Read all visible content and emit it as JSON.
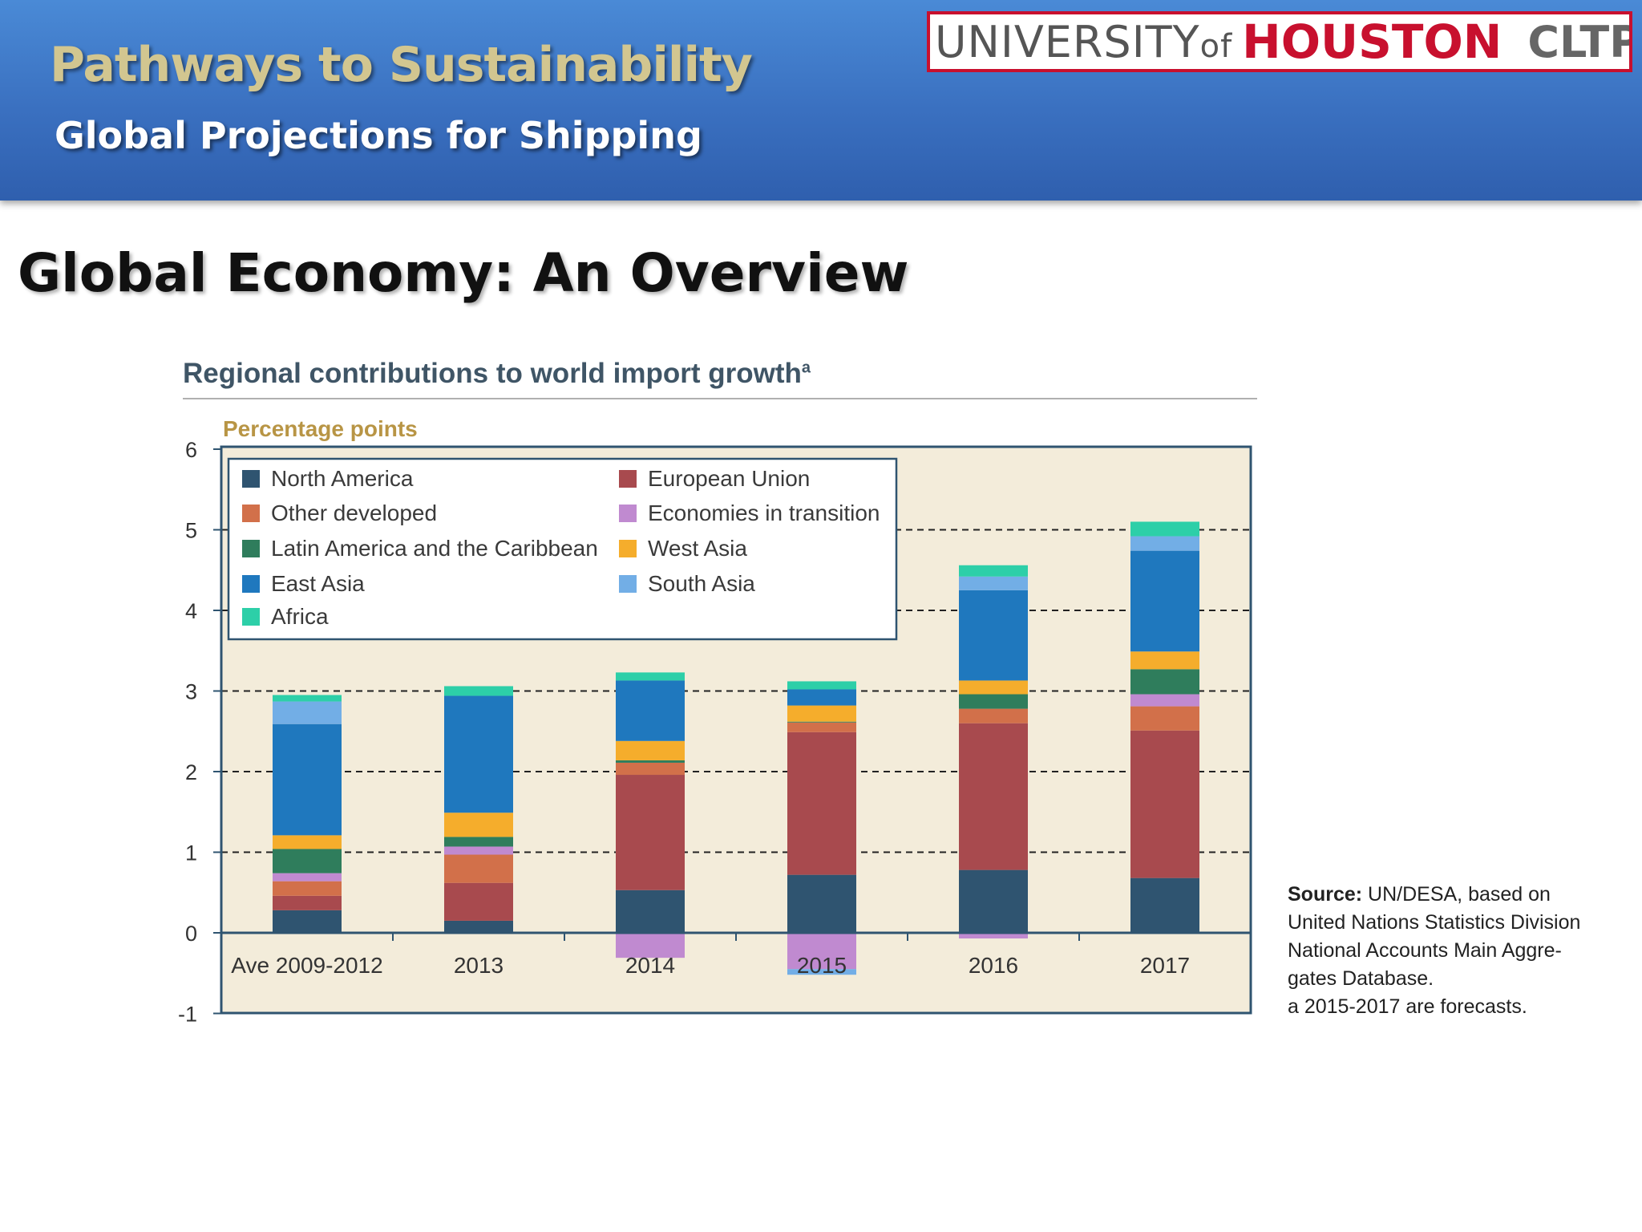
{
  "header": {
    "title": "Pathways to Sustainability",
    "subtitle": "Global Projections for Shipping",
    "logo": {
      "university": "UNIVERSITY",
      "of": "of",
      "houston": "HOUSTON",
      "unit": "CLTP"
    }
  },
  "slide": {
    "heading": "Global Economy: An Overview"
  },
  "colors": {
    "banner": "#3a70c0",
    "plot_bg": "#f3ecda",
    "north_america": "#2f5470",
    "european_union": "#a84a4e",
    "other_developed": "#d2704a",
    "economies_in_transition": "#c08ad0",
    "latin_america": "#2f7d5c",
    "west_asia": "#f5ad2c",
    "east_asia": "#1f78be",
    "south_asia": "#72aee6",
    "africa": "#2dcfa8"
  },
  "chart_data": {
    "type": "bar",
    "stacked": true,
    "title": "Regional contributions to world import growth",
    "title_superscript": "a",
    "ylabel": "Percentage points",
    "ylim": [
      -1,
      6
    ],
    "yticks": [
      "6",
      "5",
      "4",
      "3",
      "2",
      "1",
      "0",
      "-1"
    ],
    "grid": "dashed horizontal",
    "legend_position": "top-left",
    "categories": [
      "Ave 2009-2012",
      "2013",
      "2014",
      "2015",
      "2016",
      "2017"
    ],
    "series": [
      {
        "name": "North America",
        "key": "north_america",
        "values": [
          0.28,
          0.15,
          0.53,
          0.72,
          0.78,
          0.68
        ]
      },
      {
        "name": "European Union",
        "key": "european_union",
        "values": [
          0.18,
          0.47,
          1.43,
          1.77,
          1.82,
          1.83
        ]
      },
      {
        "name": "Other developed",
        "key": "other_developed",
        "values": [
          0.18,
          0.35,
          0.15,
          0.12,
          0.18,
          0.3
        ]
      },
      {
        "name": "Economies in transition",
        "key": "economies_in_transition",
        "values": [
          0.1,
          0.1,
          -0.31,
          -0.45,
          -0.07,
          0.15
        ]
      },
      {
        "name": "Latin America and the Caribbean",
        "key": "latin_america",
        "values": [
          0.3,
          0.12,
          0.03,
          0.01,
          0.18,
          0.31
        ]
      },
      {
        "name": "West Asia",
        "key": "west_asia",
        "values": [
          0.17,
          0.3,
          0.24,
          0.2,
          0.17,
          0.22
        ]
      },
      {
        "name": "East Asia",
        "key": "east_asia",
        "values": [
          1.38,
          1.45,
          0.75,
          0.2,
          1.12,
          1.25
        ]
      },
      {
        "name": "South Asia",
        "key": "south_asia",
        "values": [
          0.28,
          0.0,
          0.0,
          -0.07,
          0.17,
          0.18
        ]
      },
      {
        "name": "Africa",
        "key": "africa",
        "values": [
          0.08,
          0.12,
          0.1,
          0.1,
          0.14,
          0.18
        ]
      }
    ]
  },
  "source": {
    "label": "Source:",
    "text": " UN/DESA, based on",
    "lines": [
      "United Nations Statistics Division",
      "National Accounts Main Aggre-",
      "gates Database."
    ],
    "footnote": "a 2015-2017 are forecasts."
  }
}
